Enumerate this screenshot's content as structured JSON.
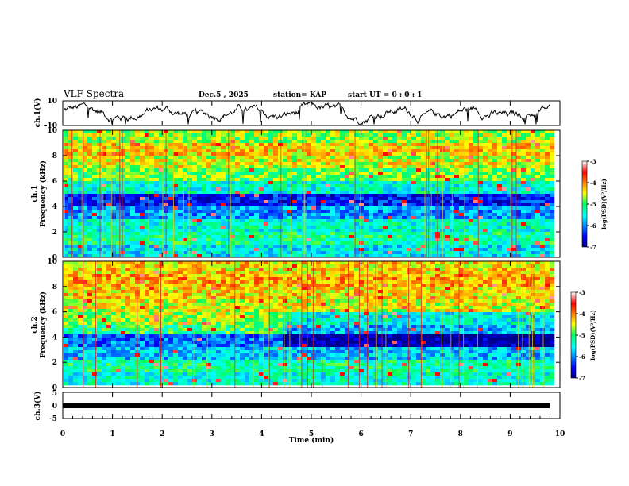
{
  "header": {
    "title": "VLF Spectra",
    "date": "Dec.5  , 2025",
    "station": "station= KAP",
    "start_ut": "start  UT =   0 : 0  : 1"
  },
  "chart_data": [
    {
      "type": "line",
      "name": "ch1-voltage",
      "ylabel": "ch.1(V)",
      "ylim": [
        -10,
        10
      ],
      "ytick_labels": [
        "10",
        "-10"
      ],
      "xlim": [
        0,
        10
      ],
      "x_end": 9.8,
      "description_values": [
        3,
        5,
        0,
        4,
        -3,
        6,
        2,
        -4,
        5,
        1,
        -2,
        4,
        0,
        6,
        -3,
        2,
        5,
        -1,
        3,
        0
      ]
    },
    {
      "type": "heatmap",
      "name": "ch1-spectrogram",
      "ylabel": "ch.1\nFrequency  (kHz)",
      "ylim": [
        0,
        10
      ],
      "ytick_labels": [
        "0",
        "2",
        "4",
        "6",
        "8",
        "10"
      ],
      "xlim": [
        0,
        10
      ],
      "colorbar": {
        "label": "log(PSD)(V²/Hz)",
        "range": [
          -7,
          -3
        ],
        "tick_labels": [
          "-3",
          "-4",
          "-5",
          "-6",
          "-7"
        ]
      },
      "band_levels_by_khz": [
        1.6,
        2.0,
        1.8,
        1.2,
        0.6,
        1.8,
        2.4,
        2.8,
        3.0,
        2.6
      ]
    },
    {
      "type": "heatmap",
      "name": "ch2-spectrogram",
      "ylabel": "ch.2\nFrequency  (kHz)",
      "ylim": [
        0,
        10
      ],
      "ytick_labels": [
        "0",
        "2",
        "4",
        "6",
        "8",
        "10"
      ],
      "xlim": [
        0,
        10
      ],
      "colorbar": {
        "label": "log(PSD)(V²/Hz)",
        "range": [
          -7,
          -3
        ],
        "tick_labels": [
          "-3",
          "-4",
          "-5",
          "-6",
          "-7"
        ]
      },
      "band_levels_by_khz": [
        1.8,
        2.0,
        1.4,
        1.0,
        2.2,
        2.6,
        2.8,
        3.0,
        3.2,
        3.0
      ]
    },
    {
      "type": "line",
      "name": "ch3-voltage",
      "ylabel": "ch.3(V)",
      "ylim": [
        -5,
        5
      ],
      "ytick_labels": [
        "5",
        "0",
        "-5"
      ],
      "xlim": [
        0,
        10
      ],
      "xlabel": "Time  (min)",
      "xtick_labels": [
        "0",
        "1",
        "2",
        "3",
        "4",
        "5",
        "6",
        "7",
        "8",
        "9",
        "10"
      ],
      "constant_value": 0
    }
  ],
  "colors": {
    "low": "#0000c8",
    "mid": "#00e8a0",
    "high": "#e80000"
  }
}
